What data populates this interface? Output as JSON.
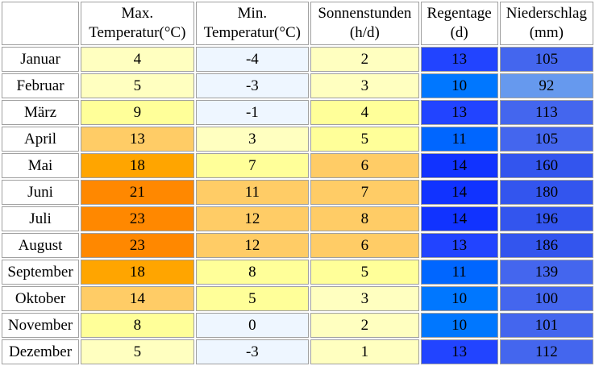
{
  "headers": {
    "max_temp": [
      "Max.",
      "Temperatur(°C)"
    ],
    "min_temp": [
      "Min.",
      "Temperatur(°C)"
    ],
    "sun": [
      "Sonnenstunden",
      "(h/d)"
    ],
    "rain_days": [
      "Regentage",
      "(d)"
    ],
    "precip": [
      "Niederschlag",
      "(mm)"
    ]
  },
  "rows": [
    {
      "month": "Januar",
      "max": "4",
      "min": "-4",
      "sun": "2",
      "rain": "13",
      "precip": "105"
    },
    {
      "month": "Februar",
      "max": "5",
      "min": "-3",
      "sun": "3",
      "rain": "10",
      "precip": "92"
    },
    {
      "month": "März",
      "max": "9",
      "min": "-1",
      "sun": "4",
      "rain": "13",
      "precip": "113"
    },
    {
      "month": "April",
      "max": "13",
      "min": "3",
      "sun": "5",
      "rain": "11",
      "precip": "105"
    },
    {
      "month": "Mai",
      "max": "18",
      "min": "7",
      "sun": "6",
      "rain": "14",
      "precip": "160"
    },
    {
      "month": "Juni",
      "max": "21",
      "min": "11",
      "sun": "7",
      "rain": "14",
      "precip": "180"
    },
    {
      "month": "Juli",
      "max": "23",
      "min": "12",
      "sun": "8",
      "rain": "14",
      "precip": "196"
    },
    {
      "month": "August",
      "max": "23",
      "min": "12",
      "sun": "6",
      "rain": "13",
      "precip": "186"
    },
    {
      "month": "September",
      "max": "18",
      "min": "8",
      "sun": "5",
      "rain": "11",
      "precip": "139"
    },
    {
      "month": "Oktober",
      "max": "14",
      "min": "5",
      "sun": "3",
      "rain": "10",
      "precip": "100"
    },
    {
      "month": "November",
      "max": "8",
      "min": "0",
      "sun": "2",
      "rain": "10",
      "precip": "101"
    },
    {
      "month": "Dezember",
      "max": "5",
      "min": "-3",
      "sun": "1",
      "rain": "13",
      "precip": "112"
    }
  ],
  "colors": {
    "max": [
      "#ffffc0",
      "#ffffc0",
      "#ffff99",
      "#ffcc66",
      "#ffa500",
      "#ff8800",
      "#ff8800",
      "#ff8800",
      "#ffa500",
      "#ffcc66",
      "#ffff99",
      "#ffffc0"
    ],
    "min": [
      "#eef6ff",
      "#eef6ff",
      "#eef6ff",
      "#ffffc0",
      "#ffff99",
      "#ffcc66",
      "#ffcc66",
      "#ffcc66",
      "#ffff99",
      "#ffff99",
      "#eef6ff",
      "#eef6ff"
    ],
    "sun": [
      "#ffffc0",
      "#ffffc0",
      "#ffff99",
      "#ffff99",
      "#ffcc66",
      "#ffcc66",
      "#ffcc66",
      "#ffcc66",
      "#ffff99",
      "#ffffc0",
      "#ffffc0",
      "#ffffc0"
    ],
    "rain": [
      "#2244ff",
      "#0077ff",
      "#2244ff",
      "#0066ff",
      "#1133ff",
      "#1133ff",
      "#1133ff",
      "#2244ff",
      "#0066ff",
      "#0077ff",
      "#0077ff",
      "#2244ff"
    ],
    "precip": [
      "#4466ee",
      "#6699ee",
      "#4466ee",
      "#4466ee",
      "#3355ee",
      "#3355ee",
      "#3355ee",
      "#3355ee",
      "#4466ee",
      "#4466ee",
      "#4466ee",
      "#4466ee"
    ]
  }
}
